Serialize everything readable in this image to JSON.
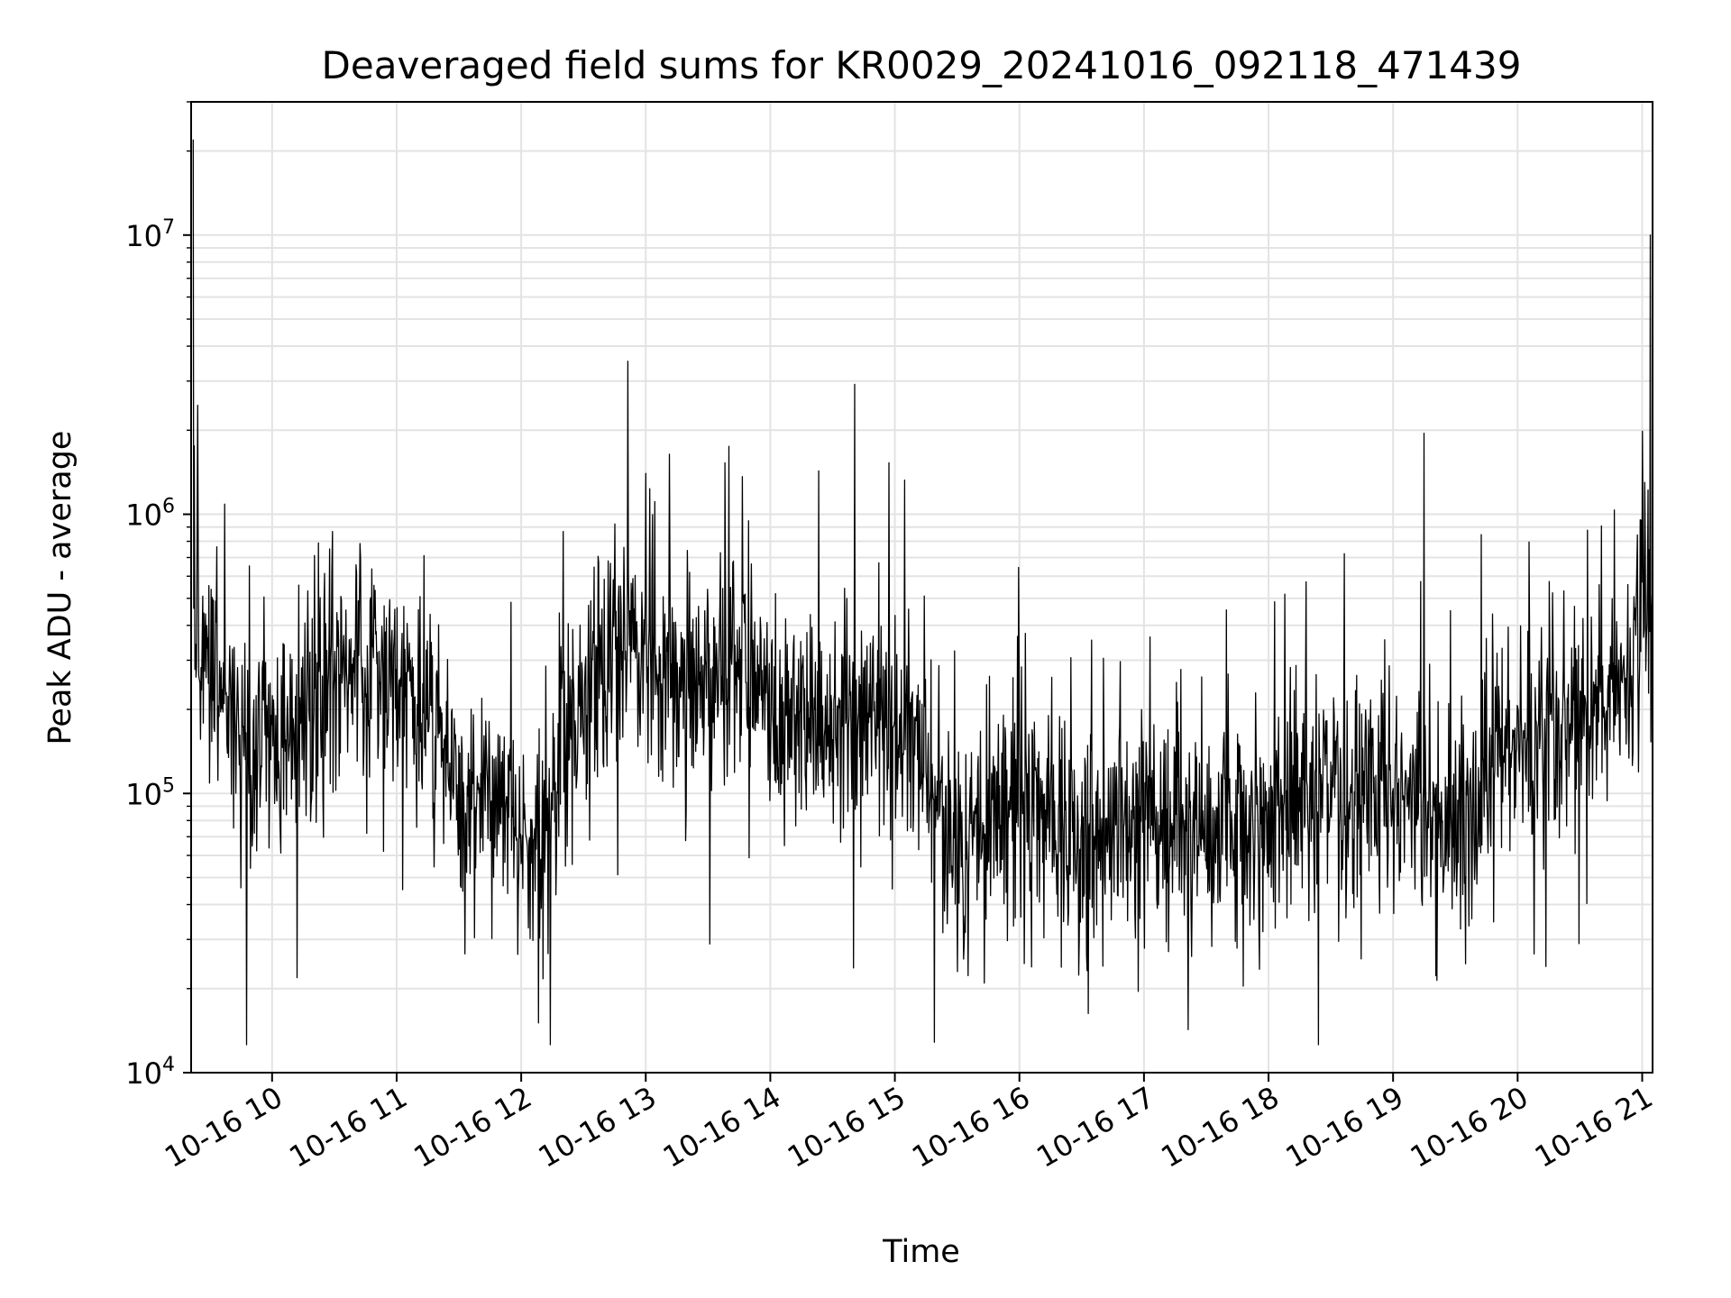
{
  "chart_data": {
    "type": "line",
    "title": "Deaveraged field sums for KR0029_20241016_092118_471439",
    "xlabel": "Time",
    "ylabel": "Peak ADU - average",
    "yscale": "log",
    "grid": true,
    "line_color": "#000000",
    "x_range": [
      "2024-10-16 09:21",
      "2024-10-16 21:05"
    ],
    "ylim": [
      10000,
      30000000
    ],
    "x_ticks": [
      "10-16 10",
      "10-16 11",
      "10-16 12",
      "10-16 13",
      "10-16 14",
      "10-16 15",
      "10-16 16",
      "10-16 17",
      "10-16 18",
      "10-16 19",
      "10-16 20",
      "10-16 21"
    ],
    "y_ticks": [
      {
        "base": "10",
        "exp": "4",
        "value": 10000
      },
      {
        "base": "10",
        "exp": "5",
        "value": 100000
      },
      {
        "base": "10",
        "exp": "6",
        "value": 1000000
      },
      {
        "base": "10",
        "exp": "7",
        "value": 10000000
      }
    ],
    "series": [
      {
        "x": [
          "2024-10-16 09:22",
          "2024-10-16 09:45",
          "2024-10-16 10:15",
          "2024-10-16 10:30",
          "2024-10-16 11:00",
          "2024-10-16 11:15",
          "2024-10-16 11:30",
          "2024-10-16 11:50",
          "2024-10-16 12:05",
          "2024-10-16 12:20",
          "2024-10-16 12:40",
          "2024-10-16 13:00",
          "2024-10-16 13:30",
          "2024-10-16 13:45",
          "2024-10-16 14:00",
          "2024-10-16 14:30",
          "2024-10-16 15:00",
          "2024-10-16 15:30",
          "2024-10-16 16:00",
          "2024-10-16 16:30",
          "2024-10-16 17:00",
          "2024-10-16 17:30",
          "2024-10-16 18:00",
          "2024-10-16 18:30",
          "2024-10-16 19:00",
          "2024-10-16 19:30",
          "2024-10-16 20:00",
          "2024-10-16 20:30",
          "2024-10-16 20:50",
          "2024-10-16 21:05"
        ],
        "y": [
          400000,
          150000,
          160000,
          300000,
          250000,
          200000,
          100000,
          90000,
          50000,
          120000,
          350000,
          300000,
          250000,
          300000,
          200000,
          200000,
          200000,
          60000,
          100000,
          60000,
          80000,
          70000,
          80000,
          100000,
          100000,
          80000,
          150000,
          200000,
          250000,
          500000
        ],
        "peaks": [
          {
            "x": "2024-10-16 09:22",
            "y": 22000000
          },
          {
            "x": "2024-10-16 13:40",
            "y": 1750000
          },
          {
            "x": "2024-10-16 19:15",
            "y": 1950000
          },
          {
            "x": "2024-10-16 21:04",
            "y": 10000000
          }
        ]
      }
    ]
  }
}
